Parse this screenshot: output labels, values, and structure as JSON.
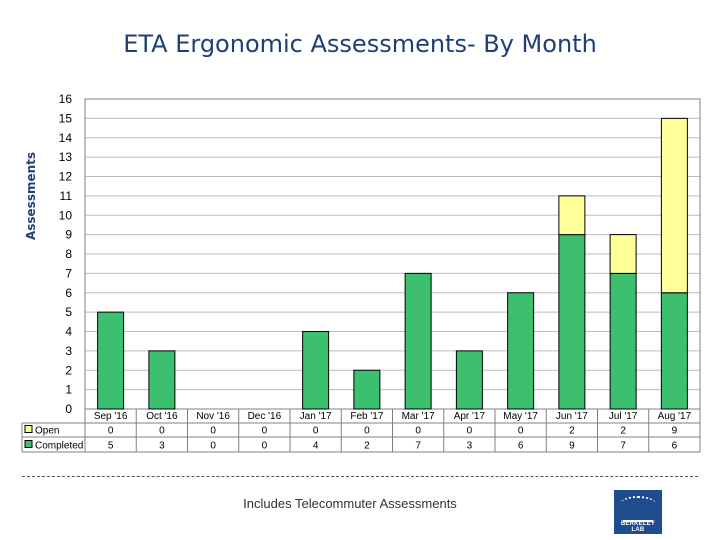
{
  "header": {
    "title": "ETA Ergonomic Assessments- By Month"
  },
  "footer": {
    "caption": "Includes Telecommuter Assessments"
  },
  "logo": {
    "text": "BERKELEY LAB"
  },
  "chart_data": {
    "type": "bar",
    "stacked": true,
    "title": "ETA Ergonomic Assessments- By Month",
    "xlabel": "",
    "ylabel": "Assessments",
    "ylim": [
      0,
      16
    ],
    "yticks": [
      0,
      1,
      2,
      3,
      4,
      5,
      6,
      7,
      8,
      9,
      10,
      11,
      12,
      13,
      14,
      15,
      16
    ],
    "grid": true,
    "legend": "data-table-left",
    "categories": [
      "Sep '16",
      "Oct '16",
      "Nov '16",
      "Dec '16",
      "Jan '17",
      "Feb '17",
      "Mar '17",
      "Apr '17",
      "May '17",
      "Jun '17",
      "Jul '17",
      "Aug '17"
    ],
    "series": [
      {
        "name": "Completed",
        "color": "#3cbf6e",
        "values": [
          5,
          3,
          0,
          0,
          4,
          2,
          7,
          3,
          6,
          9,
          7,
          6
        ]
      },
      {
        "name": "Open",
        "color": "#ffff99",
        "values": [
          0,
          0,
          0,
          0,
          0,
          0,
          0,
          0,
          0,
          2,
          2,
          9
        ]
      }
    ]
  }
}
